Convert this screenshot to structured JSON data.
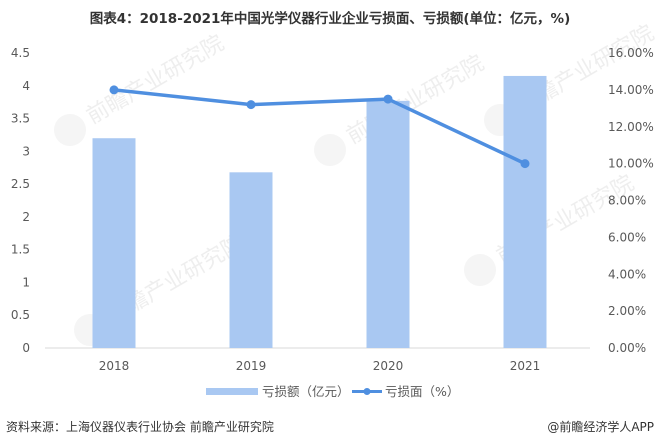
{
  "title": "图表4：2018-2021年中国光学仪器行业企业亏损面、亏损额(单位：亿元，%)",
  "chart_data": {
    "type": "bar+line",
    "title": "图表4：2018-2021年中国光学仪器行业企业亏损面、亏损额(单位：亿元，%)",
    "categories": [
      "2018",
      "2019",
      "2020",
      "2021"
    ],
    "series": [
      {
        "name": "亏损额（亿元）",
        "type": "bar",
        "axis": "left",
        "values": [
          3.2,
          2.68,
          3.77,
          4.15
        ],
        "color": "#a9c8f2"
      },
      {
        "name": "亏损面（%）",
        "type": "line",
        "axis": "right",
        "values": [
          14.0,
          13.2,
          13.5,
          10.0
        ],
        "color": "#4f8fe0"
      }
    ],
    "left_axis": {
      "min": 0,
      "max": 4.5,
      "ticks": [
        "0",
        "0.5",
        "1",
        "1.5",
        "2",
        "2.5",
        "3",
        "3.5",
        "4",
        "4.5"
      ]
    },
    "right_axis": {
      "min": 0,
      "max": 16,
      "ticks": [
        "0.00%",
        "2.00%",
        "4.00%",
        "6.00%",
        "8.00%",
        "10.00%",
        "12.00%",
        "14.00%",
        "16.00%"
      ]
    },
    "xlabel": "",
    "ylabel": "",
    "grid": false,
    "legend_position": "bottom"
  },
  "legend": {
    "bar_label": "亏损额（亿元）",
    "line_label": "亏损面（%）"
  },
  "watermark": "前瞻产业研究院",
  "footer": {
    "source": "资料来源：上海仪器仪表行业协会 前瞻产业研究院",
    "credit": "@前瞻经济学人APP"
  }
}
